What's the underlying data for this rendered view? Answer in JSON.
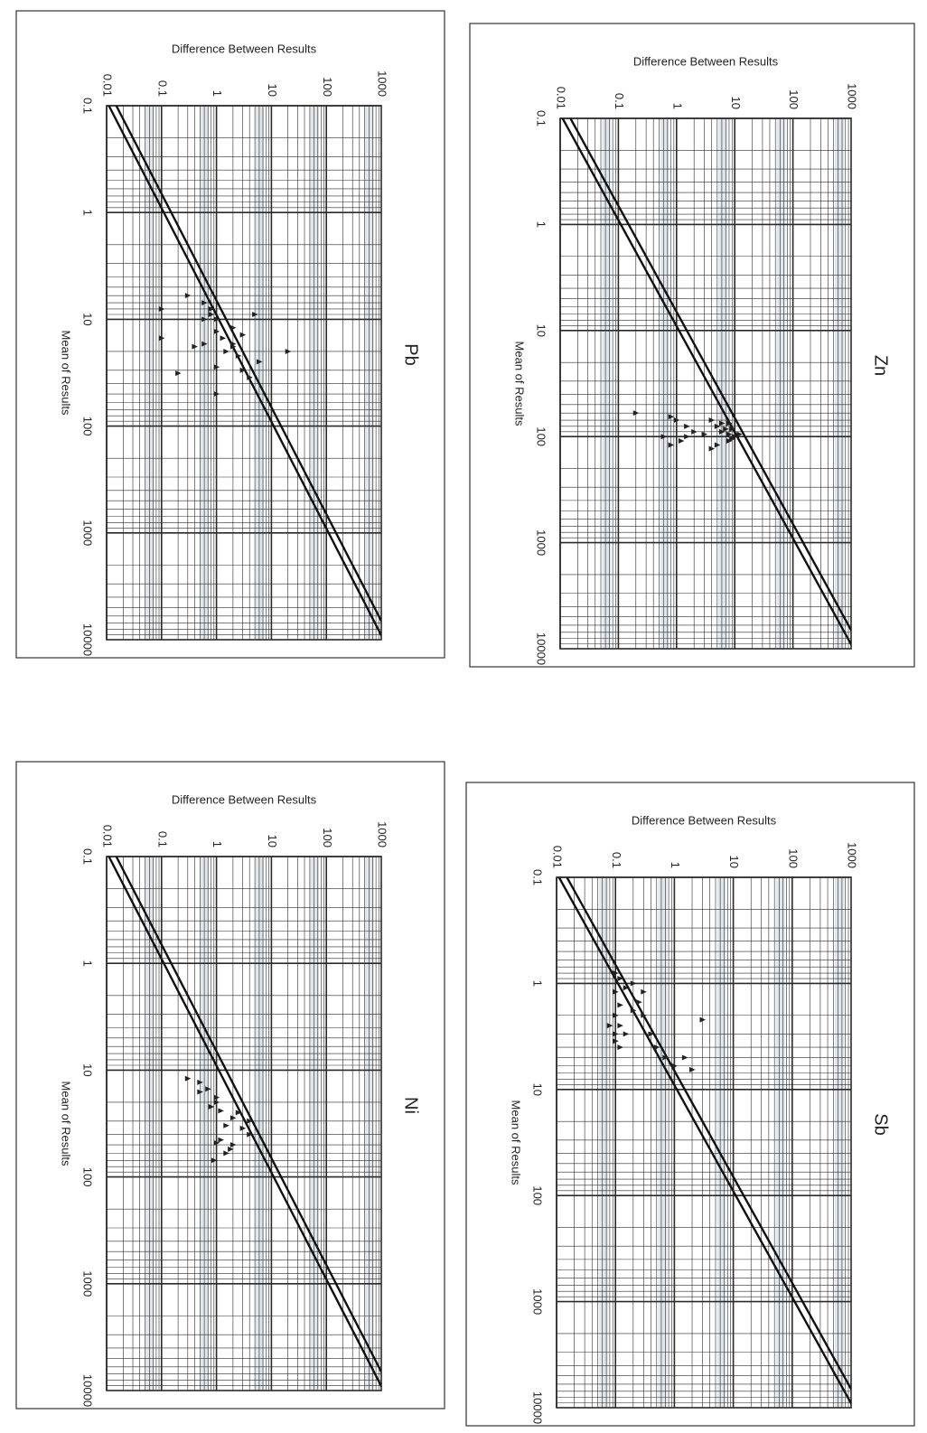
{
  "page": {
    "orientation": "rotated 90° clockwise (landscape scan)",
    "colors": {
      "paper": "#ffffff",
      "frame": "#333333",
      "grid": "#2a2a2a",
      "band": "#cfd6dc",
      "line": "#111111",
      "marker": "#222222",
      "text": "#222222"
    }
  },
  "chart_data": [
    {
      "type": "scatter",
      "title": "Ni",
      "xlabel": "Mean of Results",
      "ylabel": "Difference Between Results",
      "x_scale": "log",
      "y_scale": "log",
      "xlim": [
        0.1,
        10000
      ],
      "ylim": [
        0.01,
        1000
      ],
      "x_ticks": [
        "0.1",
        "1",
        "10",
        "100",
        "1000",
        "10000"
      ],
      "y_ticks": [
        "1000",
        "100",
        "10",
        "1",
        "0.1",
        "0.01"
      ],
      "grid": true,
      "legend": "none",
      "lines": [
        {
          "points": [
            [
              0.1,
              0.011
            ],
            [
              10000,
              1100
            ]
          ]
        },
        {
          "points": [
            [
              0.1,
              0.015
            ],
            [
              10000,
              1500
            ]
          ]
        }
      ],
      "points": [
        [
          40,
          4
        ],
        [
          35,
          3
        ],
        [
          30,
          4
        ],
        [
          28,
          2
        ],
        [
          25,
          2.5
        ],
        [
          24,
          1.2
        ],
        [
          33,
          1.5
        ],
        [
          45,
          1.2
        ],
        [
          50,
          2
        ],
        [
          55,
          1.8
        ],
        [
          48,
          1
        ],
        [
          60,
          1.5
        ],
        [
          20,
          1
        ],
        [
          18,
          1
        ],
        [
          15,
          0.7
        ],
        [
          13,
          0.5
        ],
        [
          16,
          0.5
        ],
        [
          22,
          0.8
        ],
        [
          70,
          0.9
        ],
        [
          12,
          0.3
        ]
      ]
    },
    {
      "type": "scatter",
      "title": "Pb",
      "xlabel": "Mean of Results",
      "ylabel": "Difference Between Results",
      "x_scale": "log",
      "y_scale": "log",
      "xlim": [
        0.1,
        10000
      ],
      "ylim": [
        0.01,
        1000
      ],
      "x_ticks": [
        "0.1",
        "1",
        "10",
        "100",
        "1000",
        "10000"
      ],
      "y_ticks": [
        "1000",
        "100",
        "10",
        "1",
        "0.1",
        "0.01"
      ],
      "grid": true,
      "legend": "none",
      "lines": [
        {
          "points": [
            [
              0.1,
              0.011
            ],
            [
              10000,
              1100
            ]
          ]
        },
        {
          "points": [
            [
              0.1,
              0.015
            ],
            [
              10000,
              1500
            ]
          ]
        }
      ],
      "points": [
        [
          20,
          20
        ],
        [
          25,
          6
        ],
        [
          30,
          3
        ],
        [
          35,
          4
        ],
        [
          22,
          2.5
        ],
        [
          18,
          2
        ],
        [
          20,
          1.5
        ],
        [
          17,
          2
        ],
        [
          15,
          1.3
        ],
        [
          12,
          2
        ],
        [
          14,
          3
        ],
        [
          13,
          1
        ],
        [
          10,
          1
        ],
        [
          9,
          0.8
        ],
        [
          10,
          0.6
        ],
        [
          9,
          5
        ],
        [
          8,
          0.8
        ],
        [
          7,
          0.6
        ],
        [
          6,
          0.3
        ],
        [
          17,
          0.6
        ],
        [
          18,
          0.4
        ],
        [
          28,
          1
        ],
        [
          32,
          0.2
        ],
        [
          50,
          1
        ],
        [
          15,
          0.1
        ],
        [
          8,
          0.1
        ]
      ]
    },
    {
      "type": "scatter",
      "title": "Sb",
      "xlabel": "Mean of Results",
      "ylabel": "Difference Between Results",
      "x_scale": "log",
      "y_scale": "log",
      "xlim": [
        0.1,
        10000
      ],
      "ylim": [
        0.01,
        1000
      ],
      "x_ticks": [
        "0.1",
        "1",
        "10",
        "100",
        "1000",
        "10000"
      ],
      "y_ticks": [
        "1000",
        "100",
        "10",
        "1",
        "0.1",
        "0.01"
      ],
      "grid": true,
      "legend": "none",
      "lines": [
        {
          "points": [
            [
              0.1,
              0.011
            ],
            [
              10000,
              1100
            ]
          ]
        },
        {
          "points": [
            [
              0.1,
              0.015
            ],
            [
              10000,
              1500
            ]
          ]
        }
      ],
      "points": [
        [
          6.5,
          2
        ],
        [
          5,
          1.5
        ],
        [
          6,
          1
        ],
        [
          5,
          0.7
        ],
        [
          4,
          0.5
        ],
        [
          3,
          0.4
        ],
        [
          2.2,
          3
        ],
        [
          2,
          0.3
        ],
        [
          1.8,
          0.2
        ],
        [
          1.5,
          0.25
        ],
        [
          1.2,
          0.3
        ],
        [
          1.1,
          0.15
        ],
        [
          1,
          0.2
        ],
        [
          0.8,
          0.1
        ],
        [
          1.2,
          0.1
        ],
        [
          1.6,
          0.12
        ],
        [
          2,
          0.1
        ],
        [
          2.5,
          0.12
        ],
        [
          3,
          0.1
        ],
        [
          3.5,
          0.1
        ],
        [
          4,
          0.12
        ],
        [
          3,
          0.15
        ],
        [
          2.5,
          0.08
        ],
        [
          0.9,
          0.12
        ]
      ]
    },
    {
      "type": "scatter",
      "title": "Zn",
      "xlabel": "Mean of Results",
      "ylabel": "Difference Between Results",
      "x_scale": "log",
      "y_scale": "log",
      "xlim": [
        0.1,
        10000
      ],
      "ylim": [
        0.01,
        1000
      ],
      "x_ticks": [
        "0.1",
        "1",
        "10",
        "100",
        "1000",
        "10000"
      ],
      "y_ticks": [
        "1000",
        "100",
        "10",
        "1",
        "0.1",
        "0.01"
      ],
      "grid": true,
      "legend": "none",
      "lines": [
        {
          "points": [
            [
              0.1,
              0.011
            ],
            [
              10000,
              1100
            ]
          ]
        },
        {
          "points": [
            [
              0.1,
              0.015
            ],
            [
              10000,
              1500
            ]
          ]
        }
      ],
      "points": [
        [
          100,
          10
        ],
        [
          95,
          8
        ],
        [
          105,
          9
        ],
        [
          90,
          6
        ],
        [
          85,
          7
        ],
        [
          110,
          8
        ],
        [
          80,
          5
        ],
        [
          75,
          6
        ],
        [
          70,
          4
        ],
        [
          120,
          5
        ],
        [
          130,
          4
        ],
        [
          95,
          3
        ],
        [
          90,
          2
        ],
        [
          100,
          1.5
        ],
        [
          110,
          1.2
        ],
        [
          80,
          1.5
        ],
        [
          70,
          1
        ],
        [
          65,
          0.8
        ],
        [
          100,
          0.6
        ],
        [
          120,
          0.8
        ],
        [
          60,
          0.2
        ],
        [
          95,
          12
        ],
        [
          85,
          9
        ],
        [
          75,
          8
        ]
      ]
    }
  ]
}
